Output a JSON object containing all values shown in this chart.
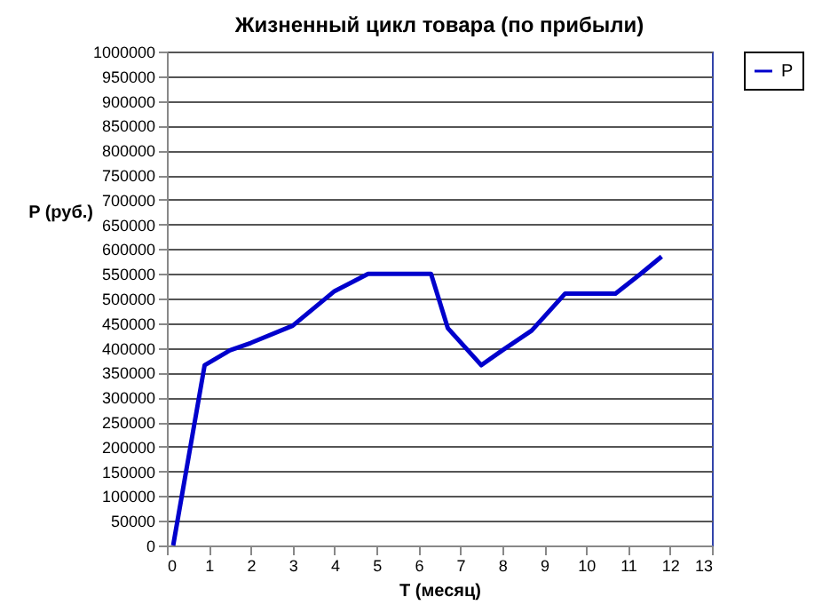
{
  "chart_data": {
    "type": "line",
    "title": "Жизненный цикл товара (по прибыли)",
    "xlabel": "T (месяц)",
    "ylabel": "P (руб.)",
    "x": [
      0.15,
      0.9,
      1.5,
      2,
      3,
      3.5,
      4,
      4.8,
      6.3,
      6.7,
      7.5,
      8,
      8.7,
      9.5,
      10.7,
      11.3,
      11.8
    ],
    "series": [
      {
        "name": "P",
        "color": "#0000cc",
        "values": [
          0,
          365000,
          395000,
          410000,
          445000,
          480000,
          515000,
          550000,
          550000,
          440000,
          365000,
          395000,
          435000,
          510000,
          510000,
          550000,
          585000
        ]
      }
    ],
    "xlim": [
      0,
      13
    ],
    "xticks": [
      0,
      1,
      2,
      3,
      4,
      5,
      6,
      7,
      8,
      9,
      10,
      11,
      12,
      13
    ],
    "ylim": [
      0,
      1000000
    ],
    "yticks": [
      0,
      50000,
      100000,
      150000,
      200000,
      250000,
      300000,
      350000,
      400000,
      450000,
      500000,
      550000,
      600000,
      650000,
      700000,
      750000,
      800000,
      850000,
      900000,
      950000,
      1000000
    ],
    "grid": "y",
    "legend": "right",
    "marker": "none",
    "line_style": "solid"
  }
}
